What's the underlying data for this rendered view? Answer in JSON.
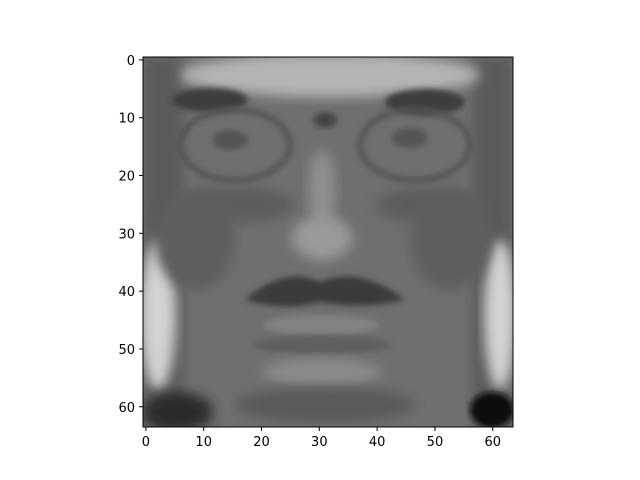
{
  "figure": {
    "background": "#ffffff",
    "colormap": "gray",
    "image_shape": [
      64,
      64
    ],
    "subject": "grayscale-face-image"
  },
  "axes": {
    "x_ticks": [
      "0",
      "10",
      "20",
      "30",
      "40",
      "50",
      "60"
    ],
    "y_ticks": [
      "0",
      "10",
      "20",
      "30",
      "40",
      "50",
      "60"
    ],
    "x_range": [
      -0.5,
      63.5
    ],
    "y_range": [
      63.5,
      -0.5
    ],
    "frame_color": "#000000"
  }
}
